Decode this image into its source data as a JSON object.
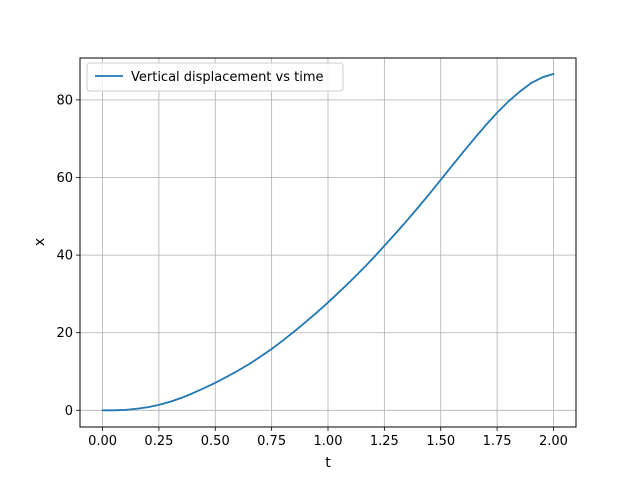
{
  "chart_data": {
    "type": "line",
    "title": "",
    "xlabel": "t",
    "ylabel": "x",
    "xlim": [
      -0.1,
      2.1
    ],
    "ylim": [
      -4.3,
      90.8
    ],
    "xticks": [
      0.0,
      0.25,
      0.5,
      0.75,
      1.0,
      1.25,
      1.5,
      1.75,
      2.0
    ],
    "xtick_labels": [
      "0.00",
      "0.25",
      "0.50",
      "0.75",
      "1.00",
      "1.25",
      "1.50",
      "1.75",
      "2.00"
    ],
    "yticks": [
      0,
      20,
      40,
      60,
      80
    ],
    "ytick_labels": [
      "0",
      "20",
      "40",
      "60",
      "80"
    ],
    "grid": true,
    "legend": {
      "position": "top-left",
      "entries": [
        "Vertical displacement vs time"
      ]
    },
    "series": [
      {
        "name": "Vertical displacement vs time",
        "color": "#1f77b4",
        "x": [
          0.0,
          0.05,
          0.1,
          0.15,
          0.2,
          0.25,
          0.3,
          0.35,
          0.4,
          0.45,
          0.5,
          0.55,
          0.6,
          0.65,
          0.7,
          0.75,
          0.8,
          0.85,
          0.9,
          0.95,
          1.0,
          1.05,
          1.1,
          1.15,
          1.2,
          1.25,
          1.3,
          1.35,
          1.4,
          1.45,
          1.5,
          1.55,
          1.6,
          1.65,
          1.7,
          1.75,
          1.8,
          1.85,
          1.9,
          1.95,
          2.0
        ],
        "y": [
          0.0,
          0.0,
          0.1,
          0.4,
          0.8,
          1.4,
          2.2,
          3.2,
          4.4,
          5.7,
          7.1,
          8.6,
          10.2,
          11.9,
          13.8,
          15.8,
          18.0,
          20.3,
          22.7,
          25.2,
          27.8,
          30.5,
          33.3,
          36.2,
          39.2,
          42.4,
          45.6,
          48.9,
          52.3,
          55.8,
          59.4,
          63.0,
          66.6,
          70.1,
          73.5,
          76.7,
          79.6,
          82.1,
          84.3,
          85.8,
          86.7
        ]
      }
    ]
  }
}
